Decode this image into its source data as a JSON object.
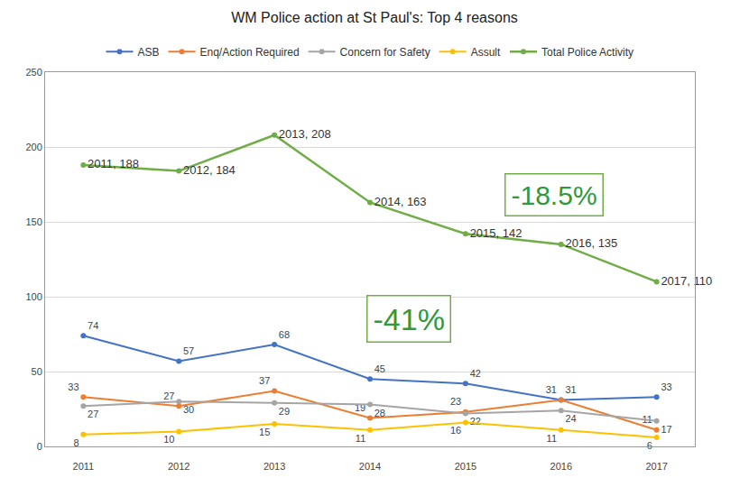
{
  "chart_data": {
    "type": "line",
    "title": "WM Police action at St Paul's: Top 4 reasons",
    "x": [
      2011,
      2012,
      2013,
      2014,
      2015,
      2016,
      2017
    ],
    "xlim": [
      2010.6,
      2017.4
    ],
    "xticks": [
      2011,
      2012,
      2013,
      2014,
      2015,
      2016,
      2017
    ],
    "ylim": [
      0,
      250
    ],
    "yticks": [
      0,
      50,
      100,
      150,
      200,
      250
    ],
    "grid": true,
    "legend": "top",
    "data_labels": true,
    "marker": "circle",
    "line_style": "solid",
    "series": [
      {
        "name": "ASB",
        "color": "#4472c4",
        "values": [
          74,
          57,
          68,
          45,
          42,
          31,
          33
        ]
      },
      {
        "name": "Enq/Action Required",
        "color": "#ed7d31",
        "values": [
          33,
          27,
          37,
          19,
          23,
          31,
          11
        ]
      },
      {
        "name": "Concern for Safety",
        "color": "#a5a5a5",
        "values": [
          27,
          30,
          29,
          28,
          22,
          24,
          17
        ]
      },
      {
        "name": "Assult",
        "color": "#ffc000",
        "values": [
          8,
          10,
          15,
          11,
          16,
          11,
          6
        ]
      },
      {
        "name": "Total Police Activity",
        "color": "#70ad47",
        "values": [
          188,
          184,
          208,
          163,
          142,
          135,
          110
        ],
        "value_labels": [
          "2011, 188",
          "2012, 184",
          "2013, 208",
          "2014, 163",
          "2015, 142",
          "2016, 135",
          "2017, 110"
        ]
      }
    ],
    "annotations": [
      "-41%",
      "-18.5%"
    ]
  }
}
